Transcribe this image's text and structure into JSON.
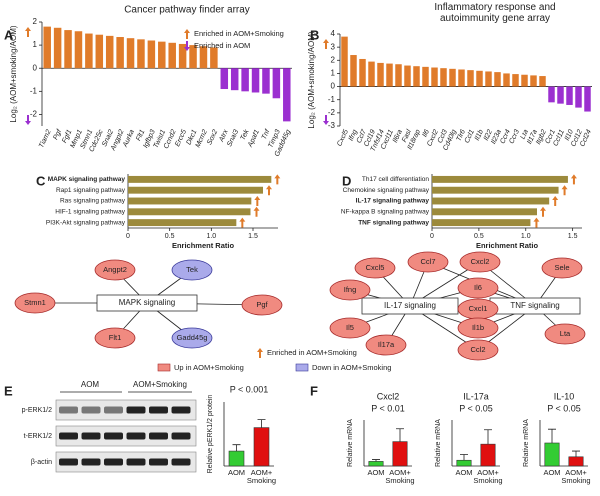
{
  "panels": [
    "A",
    "B",
    "C",
    "D",
    "E",
    "F"
  ],
  "chart_data": [
    {
      "type": "bar",
      "title": "Cancer pathway finder array",
      "y_label": "Log₂ (AOM+smoking/AOM)",
      "categories": [
        "Tiam2",
        "Pgf",
        "Fgf1",
        "Mmp1",
        "Stmn1",
        "Cdc25c",
        "Snai2",
        "Angpt2",
        "Aurka",
        "Flt1",
        "Igfbp3",
        "Twist1",
        "Ccnd2",
        "Ercc5",
        "Dkc1",
        "Mcm2",
        "Sox2",
        "Atrx",
        "Snai3",
        "Tek",
        "Apaf1",
        "Tnf",
        "Timp3",
        "Gadd45g"
      ],
      "series": [
        {
          "name": "Enriched  in AOM+Smoking",
          "color": "#e07b2a",
          "values": [
            1.8,
            1.75,
            1.65,
            1.6,
            1.5,
            1.45,
            1.4,
            1.35,
            1.3,
            1.25,
            1.2,
            1.15,
            1.1,
            1.05,
            1.0,
            0.95,
            0.9,
            null,
            null,
            null,
            null,
            null,
            null,
            null
          ]
        },
        {
          "name": "Enriched in AOM",
          "color": "#9b30d0",
          "values": [
            null,
            null,
            null,
            null,
            null,
            null,
            null,
            null,
            null,
            null,
            null,
            null,
            null,
            null,
            null,
            null,
            null,
            -0.9,
            -0.95,
            -1.0,
            -1.05,
            -1.1,
            -1.3,
            -2.3
          ]
        }
      ],
      "ylim": [
        -2.5,
        2
      ],
      "yticks": [
        -2,
        -1,
        0,
        1,
        2
      ],
      "legend": "upper right"
    },
    {
      "type": "bar",
      "title": "Inflammatory response and\nautoimmunity gene array",
      "y_label": "Log₂ (AOM+smoking/AOM)",
      "categories": [
        "Cxcl5",
        "Ifng",
        "Ccl7",
        "Ccl19",
        "Tnfsf14",
        "Cxcl11",
        "Il6ra",
        "Fasl",
        "Il18rap",
        "Il6",
        "Cxcl2",
        "Ccl3",
        "Cd40lg",
        "Tlr6",
        "Ccl1",
        "Il1b",
        "Il22",
        "Il23a",
        "Ccr4",
        "Ccr3",
        "Lta",
        "Il17a",
        "Itgb2",
        "Ccr1",
        "Ccl11",
        "Il10",
        "Ccl12",
        "Ccl24"
      ],
      "series": [
        {
          "name": "Enriched in AOM+Smoking",
          "color": "#e07b2a",
          "values": [
            3.8,
            2.4,
            2.1,
            1.9,
            1.8,
            1.75,
            1.7,
            1.6,
            1.55,
            1.5,
            1.45,
            1.4,
            1.35,
            1.3,
            1.25,
            1.2,
            1.15,
            1.1,
            1.0,
            0.95,
            0.9,
            0.85,
            0.8,
            null,
            null,
            null,
            null,
            null
          ]
        },
        {
          "name": "Enriched in AOM",
          "color": "#9b30d0",
          "values": [
            null,
            null,
            null,
            null,
            null,
            null,
            null,
            null,
            null,
            null,
            null,
            null,
            null,
            null,
            null,
            null,
            null,
            null,
            null,
            null,
            null,
            null,
            null,
            -1.2,
            -1.3,
            -1.4,
            -1.6,
            -1.9
          ]
        }
      ],
      "ylim": [
        -3,
        4
      ],
      "yticks": [
        -3,
        -2,
        -1,
        0,
        1,
        2,
        3,
        4
      ]
    },
    {
      "type": "barh",
      "x_label": "Enrichment Ratio",
      "categories": [
        "MAPK signaling pathway",
        "Rap1 signaling pathway",
        "Ras signaling pathway",
        "HIF-1 signaling pathway",
        "PI3K-Akt signaling pathway"
      ],
      "values": [
        1.72,
        1.62,
        1.48,
        1.47,
        1.3
      ],
      "color": "#9c8a3c",
      "label_colors": [
        "#d62728",
        "#333333",
        "#333333",
        "#333333",
        "#333333"
      ],
      "xlim": [
        0,
        1.8
      ],
      "xticks": [
        0,
        0.5,
        {
          "value": 1,
          "label": "1.0"
        },
        1.5
      ]
    },
    {
      "type": "barh",
      "x_label": "Enrichment Ratio",
      "categories": [
        "Th17 cell differentiation",
        "Chemokine signaling pathway",
        "IL-17 signaling pathway",
        "NF-kappa B signaling pathway",
        "TNF signaling pathway"
      ],
      "values": [
        1.45,
        1.35,
        1.25,
        1.12,
        1.05
      ],
      "color": "#9c8a3c",
      "label_colors": [
        "#333333",
        "#333333",
        "#d62728",
        "#333333",
        "#d62728"
      ],
      "xlim": [
        0,
        1.6
      ],
      "xticks": [
        0,
        0.5,
        {
          "value": 1,
          "label": "1.0"
        },
        1.5
      ]
    },
    {
      "type": "bar",
      "y_label": "Relative pERK1/2 protein",
      "annotation": "P < 0.001",
      "categories": [
        "AOM",
        "AOM+\nSmoking"
      ],
      "values": [
        0.28,
        0.72
      ],
      "errors": [
        0.12,
        0.15
      ],
      "colors": [
        "#33cc33",
        "#e01010"
      ],
      "ylim": [
        0,
        1.2
      ]
    },
    {
      "type": "bar",
      "title": "Cxcl2",
      "y_label": "Relative mRNA",
      "annotation": "P < 0.01",
      "categories": [
        "AOM",
        "AOM+\nSmoking"
      ],
      "values": [
        1,
        5.3
      ],
      "errors": [
        0.4,
        2.8
      ],
      "colors": [
        "#33cc33",
        "#e01010"
      ],
      "ylim": [
        0,
        10
      ]
    },
    {
      "type": "bar",
      "title": "IL-17a",
      "y_label": "Relative mRNA",
      "annotation": "P < 0.05",
      "categories": [
        "AOM",
        "AOM+\nSmoking"
      ],
      "values": [
        1,
        3.8
      ],
      "errors": [
        1,
        2.5
      ],
      "colors": [
        "#33cc33",
        "#e01010"
      ],
      "ylim": [
        0,
        8
      ]
    },
    {
      "type": "bar",
      "title": "IL-10",
      "y_label": "Relative mRNA",
      "annotation": "P < 0.05",
      "categories": [
        "AOM",
        "AOM+\nSmoking"
      ],
      "values": [
        1,
        0.4
      ],
      "errors": [
        0.6,
        0.25
      ],
      "colors": [
        "#33cc33",
        "#e01010"
      ],
      "ylim": [
        0,
        2
      ]
    }
  ],
  "networks": [
    {
      "centers": [
        "MAPK signaling"
      ],
      "nodes": [
        {
          "label": "Angpt2",
          "state": "up"
        },
        {
          "label": "Tek",
          "state": "down"
        },
        {
          "label": "Stmn1",
          "state": "up"
        },
        {
          "label": "Pgf",
          "state": "up"
        },
        {
          "label": "Flt1",
          "state": "up"
        },
        {
          "label": "Gadd45g",
          "state": "down"
        }
      ]
    },
    {
      "centers": [
        "IL-17 signaling",
        "TNF signaling"
      ],
      "nodes": [
        {
          "label": "Cxcl5",
          "state": "up"
        },
        {
          "label": "Ccl7",
          "state": "up"
        },
        {
          "label": "Cxcl2",
          "state": "up"
        },
        {
          "label": "Sele",
          "state": "up"
        },
        {
          "label": "Ifng",
          "state": "up"
        },
        {
          "label": "Il6",
          "state": "up"
        },
        {
          "label": "Cxcl1",
          "state": "up"
        },
        {
          "label": "Il1b",
          "state": "up"
        },
        {
          "label": "Il5",
          "state": "up"
        },
        {
          "label": "Il17a",
          "state": "up"
        },
        {
          "label": "Ccl2",
          "state": "up"
        },
        {
          "label": "Lta",
          "state": "up"
        }
      ]
    }
  ],
  "network_legend": {
    "enriched": "Enriched in AOM+Smoking",
    "up": "Up in AOM+Smoking",
    "down": "Down in AOM+Smoking"
  },
  "blot": {
    "groups": [
      "AOM",
      "AOM+Smoking"
    ],
    "rows": [
      "p-ERK1/2",
      "t-ERK1/2",
      "β-actin"
    ]
  }
}
